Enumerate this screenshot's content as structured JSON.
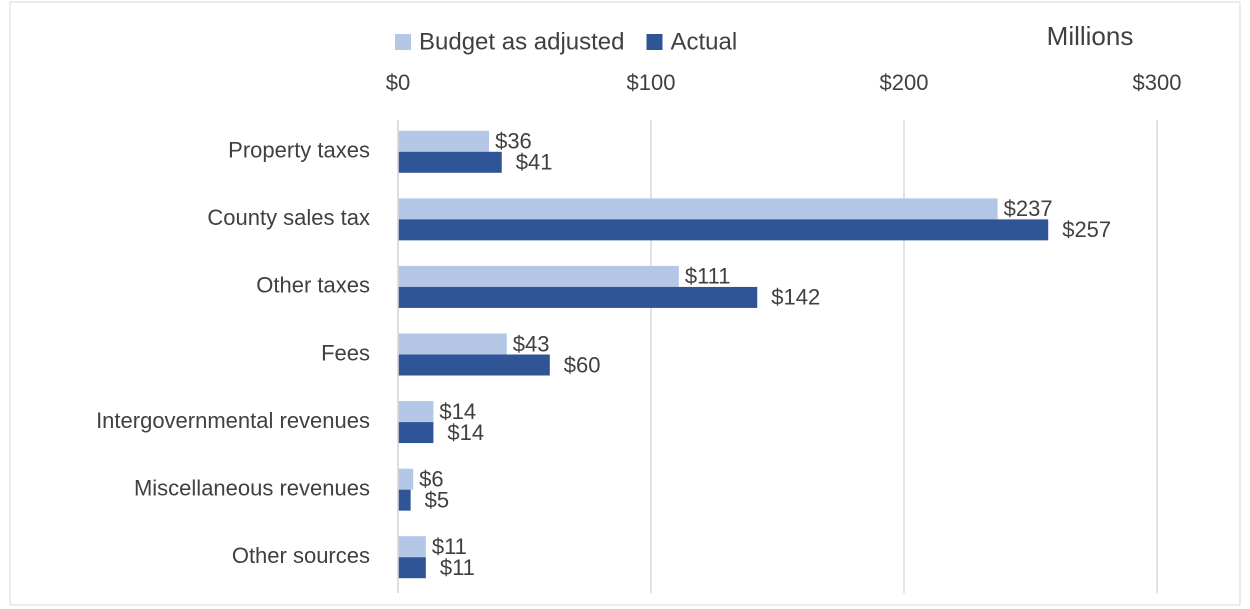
{
  "chart_data": {
    "type": "bar",
    "orientation": "horizontal",
    "x_axis_label": "Millions",
    "categories": [
      "Property taxes",
      "County sales tax",
      "Other taxes",
      "Fees",
      "Intergovernmental revenues",
      "Miscellaneous revenues",
      "Other sources"
    ],
    "series": [
      {
        "name": "Budget as adjusted",
        "color": "#b4c7e7",
        "values": [
          36,
          237,
          111,
          43,
          14,
          6,
          11
        ],
        "value_labels": [
          "$36",
          "$237",
          "$111",
          "$43",
          "$14",
          "$6",
          "$11"
        ]
      },
      {
        "name": "Actual",
        "color": "#2f5597",
        "values": [
          41,
          257,
          142,
          60,
          14,
          5,
          11
        ],
        "value_labels": [
          "$41",
          "$257",
          "$142",
          "$60",
          "$14",
          "$5",
          "$11"
        ]
      }
    ],
    "xlim": [
      0,
      300
    ],
    "xticks": [
      {
        "value": 0,
        "label": "$0"
      },
      {
        "value": 100,
        "label": "$100"
      },
      {
        "value": 200,
        "label": "$200"
      },
      {
        "value": 300,
        "label": "$300"
      }
    ],
    "grid": true,
    "legend": "top"
  }
}
